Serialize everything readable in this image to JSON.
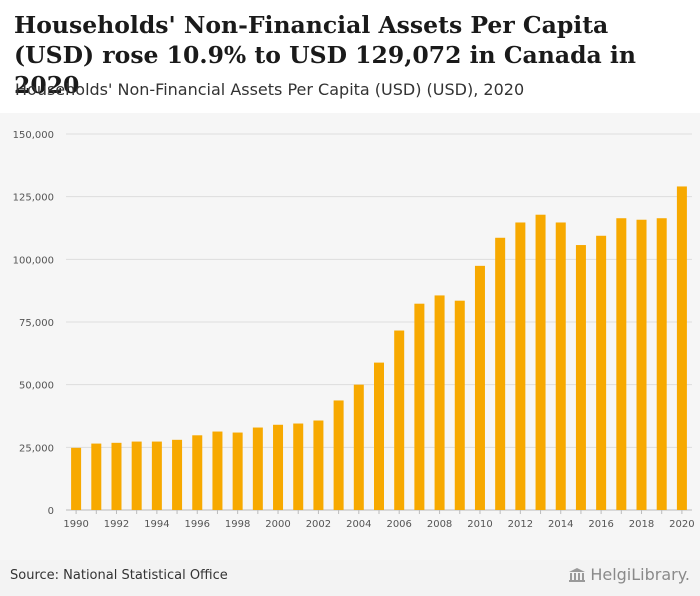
{
  "header": {
    "title": "Households' Non-Financial Assets Per Capita (USD) rose 10.9% to USD 129,072 in Canada in 2020",
    "subtitle": "Households' Non-Financial Assets Per Capita (USD) (USD), 2020"
  },
  "footer": {
    "source": "Source: National Statistical Office",
    "brand": "HelgiLibrary."
  },
  "colors": {
    "bar": "#f7a900",
    "grid": "#dddddd",
    "axis_text": "#555555"
  },
  "chart_data": {
    "type": "bar",
    "title": "Households' Non-Financial Assets Per Capita (USD) (USD), 2020",
    "xlabel": "",
    "ylabel": "",
    "ylim": [
      0,
      150000
    ],
    "yticks": [
      0,
      25000,
      50000,
      75000,
      100000,
      125000,
      150000
    ],
    "ytick_labels": [
      "0",
      "25,000",
      "50,000",
      "75,000",
      "100,000",
      "125,000",
      "150,000"
    ],
    "categories": [
      "1990",
      "1991",
      "1992",
      "1993",
      "1994",
      "1995",
      "1996",
      "1997",
      "1998",
      "1999",
      "2000",
      "2001",
      "2002",
      "2003",
      "2004",
      "2005",
      "2006",
      "2007",
      "2008",
      "2009",
      "2010",
      "2011",
      "2012",
      "2013",
      "2014",
      "2015",
      "2016",
      "2017",
      "2018",
      "2019",
      "2020"
    ],
    "xtick_labels": [
      "1990",
      "",
      "1992",
      "",
      "1994",
      "",
      "1996",
      "",
      "1998",
      "",
      "2000",
      "",
      "2002",
      "",
      "2004",
      "",
      "2006",
      "",
      "2008",
      "",
      "2010",
      "",
      "2012",
      "",
      "2014",
      "",
      "2016",
      "",
      "2018",
      "",
      "2020"
    ],
    "values": [
      24800,
      26500,
      26800,
      27300,
      27300,
      28000,
      29800,
      31300,
      30900,
      32900,
      34000,
      34500,
      35700,
      43700,
      50000,
      58800,
      71600,
      82300,
      85600,
      83500,
      97400,
      108600,
      114700,
      117800,
      114700,
      105700,
      109400,
      116400,
      115800,
      116400,
      129072
    ],
    "grid": true,
    "legend": "none"
  }
}
